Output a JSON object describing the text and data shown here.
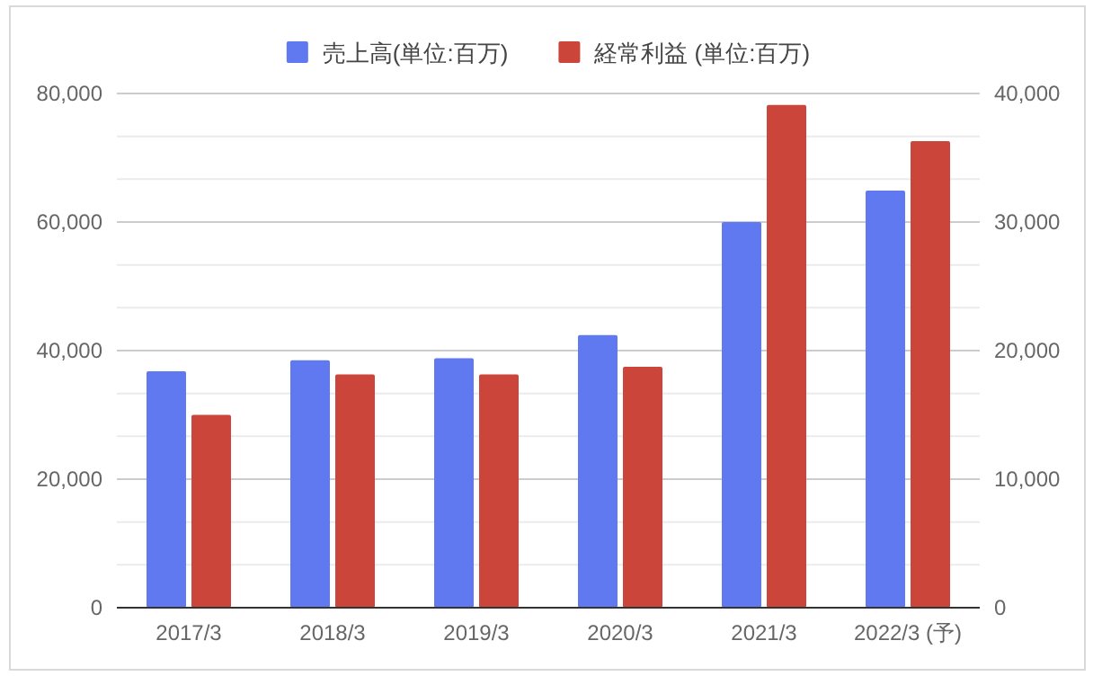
{
  "chart_data": {
    "type": "bar",
    "categories": [
      "2017/3",
      "2018/3",
      "2019/3",
      "2020/3",
      "2021/3",
      "2022/3 (予)"
    ],
    "series": [
      {
        "name": "売上高(単位:百万)",
        "color": "#6079f0",
        "values": [
          36800,
          38500,
          38800,
          42400,
          60000,
          64900
        ]
      },
      {
        "name": "経常利益 (単位:百万)",
        "color": "#cc453b",
        "axis": "y2",
        "values": [
          15000,
          18150,
          18150,
          18750,
          39100,
          36300
        ]
      }
    ],
    "ylim": [
      0,
      80000
    ],
    "yticks": [
      {
        "value": 0,
        "label": "0"
      },
      {
        "value": 20000,
        "label": "20,000"
      },
      {
        "value": 40000,
        "label": "40,000"
      },
      {
        "value": 60000,
        "label": "60,000"
      },
      {
        "value": 80000,
        "label": "80,000"
      }
    ],
    "y2lim": [
      0,
      40000
    ],
    "y2ticks": [
      {
        "value": 0,
        "label": "0"
      },
      {
        "value": 10000,
        "label": "10,000"
      },
      {
        "value": 20000,
        "label": "20,000"
      },
      {
        "value": 30000,
        "label": "30,000"
      },
      {
        "value": 40000,
        "label": "40,000"
      }
    ],
    "grid": true,
    "legend": "top"
  }
}
